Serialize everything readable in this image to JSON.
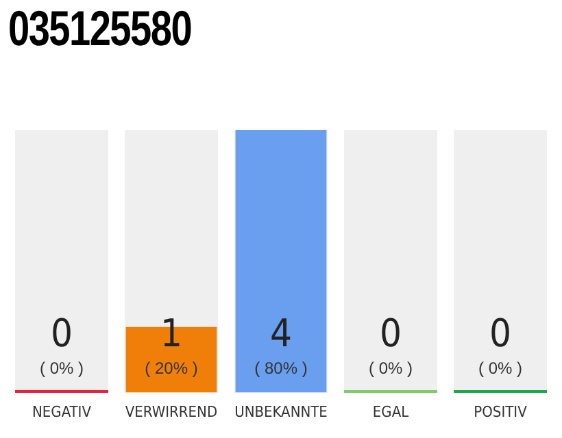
{
  "chart_data": {
    "type": "bar",
    "title": "035125580",
    "categories": [
      "NEGATIV",
      "VERWIRREND",
      "UNBEKANNTE",
      "EGAL",
      "POSITIV"
    ],
    "values": [
      0,
      1,
      4,
      0,
      0
    ],
    "colors": [
      "#e8213f",
      "#f07f0a",
      "#6a9eee",
      "#7fca6a",
      "#1ea84c"
    ],
    "value_labels": [
      "0\n( 0% )",
      "1\n( 20% )",
      "4\n( 80% )",
      "0\n( 0% )",
      "0\n( 0% )"
    ],
    "tick_labels": "x",
    "grid": false,
    "legend": false
  }
}
